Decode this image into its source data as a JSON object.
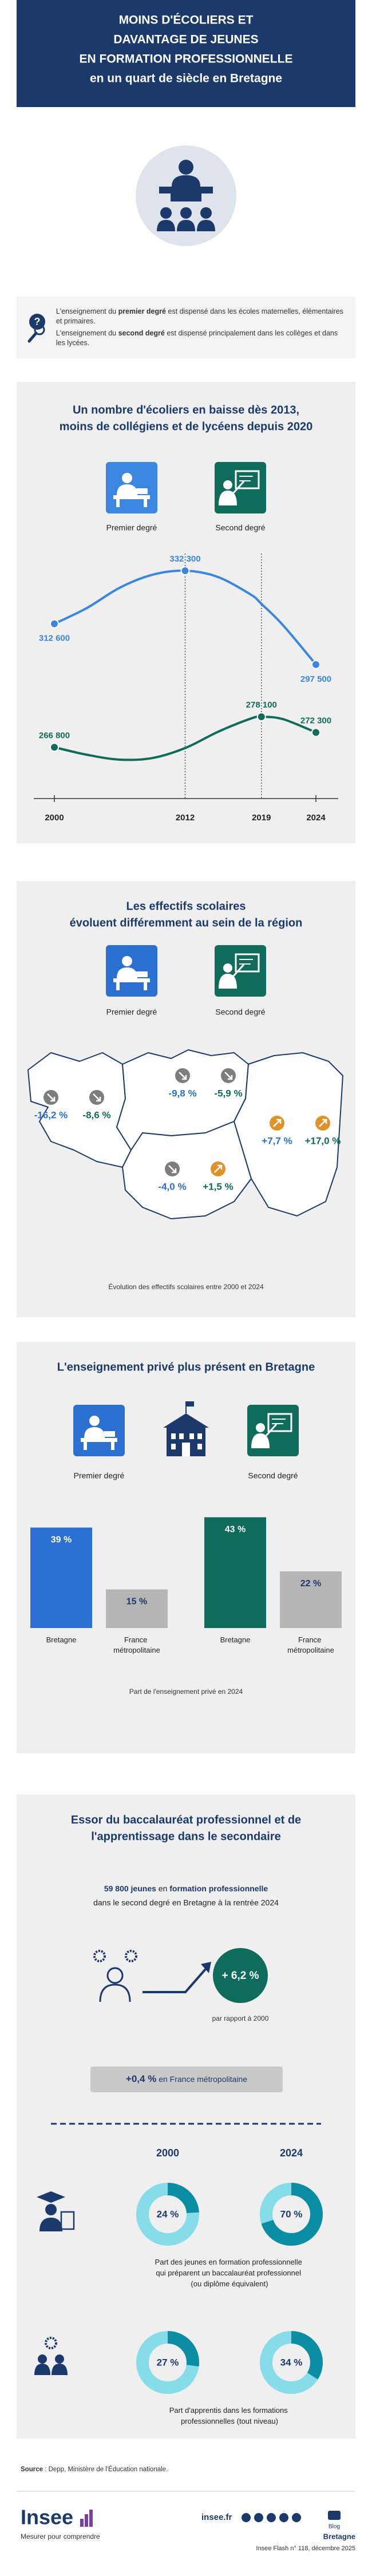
{
  "header": {
    "title": [
      "MOINS D'ÉCOLIERS ET",
      "DAVANTAGE DE JEUNES",
      "EN FORMATION PROFESSIONNELLE",
      "en un quart de siècle en Bretagne"
    ]
  },
  "intro": {
    "premier": [
      "L'enseignement du ",
      "premier degré",
      " est dispensé dans les écoles maternelles, élémentaires et primaires."
    ],
    "second": [
      "L'enseignement du ",
      "second degré",
      " est dispensé principalement dans les collèges et dans les lycées."
    ]
  },
  "chart_data": [
    {
      "type": "line",
      "title": [
        "Un nombre d'écoliers en baisse dès 2013,",
        "moins de collégiens et de lycéens depuis 2020"
      ],
      "x": [
        2000,
        2003,
        2006,
        2009,
        2012,
        2015,
        2018,
        2019,
        2021,
        2024
      ],
      "xlim": [
        2000,
        2024
      ],
      "xticks": [
        2000,
        2012,
        2019,
        2024
      ],
      "series": [
        {
          "name": "Premier degré",
          "color": "#3a86e0",
          "values": [
            312600,
            318500,
            326000,
            330800,
            332300,
            330000,
            323500,
            320000,
            312000,
            297500
          ],
          "value_labels": [
            "312 600",
            null,
            null,
            null,
            "332 300",
            null,
            null,
            null,
            null,
            "297 500"
          ]
        },
        {
          "name": "Second degré",
          "color": "#0f6b5a",
          "values": [
            266800,
            264000,
            262200,
            262800,
            266500,
            272500,
            277400,
            278100,
            277200,
            272300
          ],
          "value_labels": [
            "266 800",
            null,
            null,
            null,
            null,
            null,
            null,
            "278 100",
            null,
            "272 300"
          ]
        }
      ]
    },
    {
      "type": "map",
      "title": [
        "Les effectifs scolaires",
        "évoluent différemment au sein de la région"
      ],
      "series": [
        {
          "name": "Premier degré",
          "color": "#2b6fd1",
          "values": [
            -16.2,
            -9.8,
            -4.0,
            7.7
          ],
          "value_labels": [
            "-16,2 %",
            "-9,8 %",
            "-4,0 %",
            "+7,7 %"
          ]
        },
        {
          "name": "Second degré",
          "color": "#0f6b5a",
          "values": [
            -8.6,
            -5.9,
            1.5,
            17.0
          ],
          "value_labels": [
            "-8,6 %",
            "-5,9 %",
            "+1,5 %",
            "+17,0 %"
          ]
        }
      ],
      "up_color": "#e0922a",
      "down_color": "#7d7d7d",
      "caption": "Évolution des effectifs scolaires entre 2000 et 2024"
    },
    {
      "type": "bar",
      "title": [
        "L'enseignement privé plus présent en Bretagne"
      ],
      "categories": [
        "Bretagne",
        "France métropolitaine"
      ],
      "series": [
        {
          "name": "Premier degré",
          "colors": [
            "#2b6fd1",
            "#b5b5b5"
          ],
          "values": [
            39,
            15
          ],
          "value_labels": [
            "39 %",
            "15 %"
          ]
        },
        {
          "name": "Second degré",
          "colors": [
            "#0f6b5a",
            "#b5b5b5"
          ],
          "values": [
            43,
            22
          ],
          "value_labels": [
            "43 %",
            "22 %"
          ]
        }
      ],
      "caption": "Part de l'enseignement privé en 2024"
    },
    {
      "type": "donut",
      "title": [
        "Essor du baccalauréat professionnel et de",
        "l'apprentissage dans le secondaire"
      ],
      "headline": [
        [
          "59 800 jeunes",
          " en ",
          "formation professionnelle"
        ],
        "dans le second degré en Bretagne à la rentrée 2024"
      ],
      "growth": "+ 6,2 %",
      "growth_note": "par rapport à 2000",
      "france": [
        "+0,4 %",
        " en France métropolitaine"
      ],
      "categories": [
        "2000",
        "2024"
      ],
      "series": [
        {
          "name": "Part des jeunes en formation professionnelle qui préparent un baccalauréat professionnel (ou diplôme équivalent)",
          "values": [
            24,
            70
          ],
          "value_labels": [
            "24 %",
            "70 %"
          ]
        },
        {
          "name": "Part d'apprentis dans les formations professionnelles (tout niveau)",
          "values": [
            27,
            34
          ],
          "value_labels": [
            "27 %",
            "34 %"
          ]
        }
      ],
      "ring_color": "#86dde9",
      "fill_color": "#0b8ea3"
    }
  ],
  "source": [
    "Source",
    " : Depp, Ministère de l'Éducation nationale."
  ],
  "footer": {
    "logo": "Insee",
    "tagline": "Mesurer pour comprendre",
    "site": "insee.fr",
    "blog": "Blog",
    "region": "Bretagne",
    "publication": "Insee Flash n° 118, décembre 2025"
  }
}
